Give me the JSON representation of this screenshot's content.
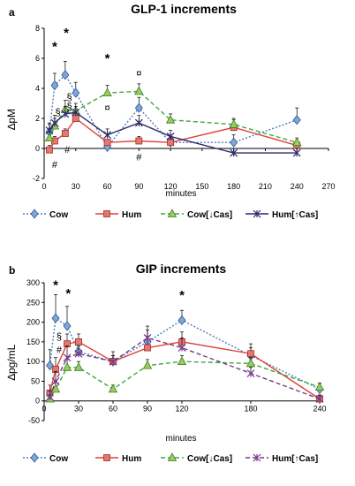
{
  "chart_data": [
    {
      "type": "line",
      "panel": "a",
      "title": "GLP-1 increments",
      "xlabel": "minutes",
      "ylabel": "∆pM",
      "xlim": [
        0,
        270
      ],
      "ylim": [
        -2,
        8
      ],
      "xticks": [
        0,
        30,
        60,
        90,
        120,
        150,
        180,
        210,
        240,
        270
      ],
      "yticks": [
        -2,
        0,
        2,
        4,
        6,
        8
      ],
      "legend_position": "bottom",
      "series": [
        {
          "name": "Cow",
          "color": "#4a7ebb",
          "dash": "dotted",
          "marker": "diamond",
          "x": [
            5,
            10,
            20,
            30,
            60,
            90,
            120,
            180,
            240
          ],
          "values": [
            1.1,
            4.2,
            4.9,
            3.7,
            0.1,
            2.7,
            0.4,
            0.4,
            1.9
          ],
          "err": [
            0.5,
            0.8,
            0.9,
            0.7,
            0.5,
            0.7,
            0.4,
            0.5,
            0.8
          ]
        },
        {
          "name": "Hum",
          "color": "#e0403a",
          "dash": "solid",
          "marker": "square",
          "x": [
            5,
            10,
            20,
            30,
            60,
            90,
            120,
            180,
            240
          ],
          "values": [
            -0.1,
            0.5,
            1.0,
            2.0,
            0.4,
            0.5,
            0.4,
            1.4,
            0.2
          ],
          "err": [
            0.3,
            0.3,
            0.3,
            0.3,
            0.2,
            0.3,
            0.3,
            0.5,
            0.3
          ]
        },
        {
          "name": "Cow[↓Cas]",
          "color": "#3fa83f",
          "dash": "dashed",
          "marker": "triangle",
          "x": [
            5,
            10,
            20,
            30,
            60,
            90,
            120,
            180,
            240
          ],
          "values": [
            0.7,
            1.5,
            2.6,
            2.5,
            3.7,
            3.8,
            1.9,
            1.6,
            0.4
          ],
          "err": [
            0.4,
            0.5,
            0.6,
            0.5,
            0.5,
            0.5,
            0.4,
            0.4,
            0.3
          ]
        },
        {
          "name": "Hum[↑Cas]",
          "color": "#2e2a6a",
          "dash": "solid",
          "marker": "star",
          "x": [
            5,
            10,
            20,
            30,
            60,
            90,
            120,
            180,
            240
          ],
          "values": [
            1.2,
            1.7,
            2.3,
            2.4,
            0.9,
            1.7,
            0.8,
            -0.3,
            -0.3
          ],
          "err": [
            0.5,
            0.5,
            0.5,
            0.4,
            0.4,
            0.5,
            0.4,
            0.3,
            0.3
          ]
        }
      ],
      "annotations": [
        {
          "text": "*",
          "x": 10,
          "y": 6.5
        },
        {
          "text": "*",
          "x": 21,
          "y": 7.4
        },
        {
          "text": "*",
          "x": 60,
          "y": 5.7
        },
        {
          "text": "¤",
          "x": 90,
          "y": 4.8
        },
        {
          "text": "¤",
          "x": 60,
          "y": 2.5
        },
        {
          "text": "§",
          "x": 13,
          "y": 2.2
        },
        {
          "text": "§",
          "x": 24,
          "y": 3.2
        },
        {
          "text": "§",
          "x": 24,
          "y": 2.6
        },
        {
          "text": "#",
          "x": 10,
          "y": -1.3
        },
        {
          "text": "#",
          "x": 22,
          "y": -0.3
        },
        {
          "text": "#",
          "x": 90,
          "y": -0.8
        }
      ]
    },
    {
      "type": "line",
      "panel": "b",
      "title": "GIP increments",
      "xlabel": "minutes",
      "ylabel": "∆pg/mL",
      "xlim": [
        0,
        240
      ],
      "ylim": [
        -50,
        300
      ],
      "xticks": [
        0,
        30,
        60,
        90,
        120,
        180,
        240
      ],
      "yticks": [
        -50,
        0,
        50,
        100,
        150,
        200,
        250,
        300
      ],
      "legend_position": "bottom",
      "series": [
        {
          "name": "Cow",
          "color": "#4a7ebb",
          "dash": "dotted",
          "marker": "diamond",
          "x": [
            5,
            10,
            20,
            30,
            60,
            90,
            120,
            180,
            240
          ],
          "values": [
            90,
            210,
            190,
            125,
            100,
            150,
            205,
            115,
            30
          ],
          "err": [
            40,
            60,
            50,
            25,
            25,
            30,
            25,
            20,
            15
          ]
        },
        {
          "name": "Hum",
          "color": "#e0403a",
          "dash": "solid",
          "marker": "square",
          "x": [
            5,
            10,
            20,
            30,
            60,
            90,
            120,
            180,
            240
          ],
          "values": [
            20,
            80,
            145,
            150,
            100,
            135,
            150,
            120,
            5
          ],
          "err": [
            20,
            30,
            25,
            20,
            15,
            30,
            25,
            25,
            10
          ]
        },
        {
          "name": "Cow[↓Cas]",
          "color": "#3fa83f",
          "dash": "dashed",
          "marker": "triangle",
          "x": [
            5,
            10,
            20,
            30,
            60,
            90,
            120,
            180,
            240
          ],
          "values": [
            5,
            30,
            85,
            85,
            30,
            90,
            100,
            95,
            35
          ],
          "err": [
            10,
            20,
            20,
            15,
            10,
            15,
            15,
            15,
            10
          ]
        },
        {
          "name": "Hum[↑Cas]",
          "color": "#7a3a88",
          "dash": "dashed",
          "marker": "star",
          "x": [
            5,
            10,
            20,
            30,
            60,
            90,
            120,
            180,
            240
          ],
          "values": [
            10,
            50,
            110,
            120,
            100,
            160,
            135,
            70,
            5
          ],
          "err": [
            15,
            25,
            30,
            20,
            15,
            30,
            25,
            15,
            10
          ]
        }
      ],
      "annotations": [
        {
          "text": "*",
          "x": 10,
          "y": 283
        },
        {
          "text": "*",
          "x": 21,
          "y": 262
        },
        {
          "text": "*",
          "x": 120,
          "y": 257
        },
        {
          "text": "§",
          "x": 13,
          "y": 155
        },
        {
          "text": "#",
          "x": 13,
          "y": 122
        }
      ]
    }
  ]
}
